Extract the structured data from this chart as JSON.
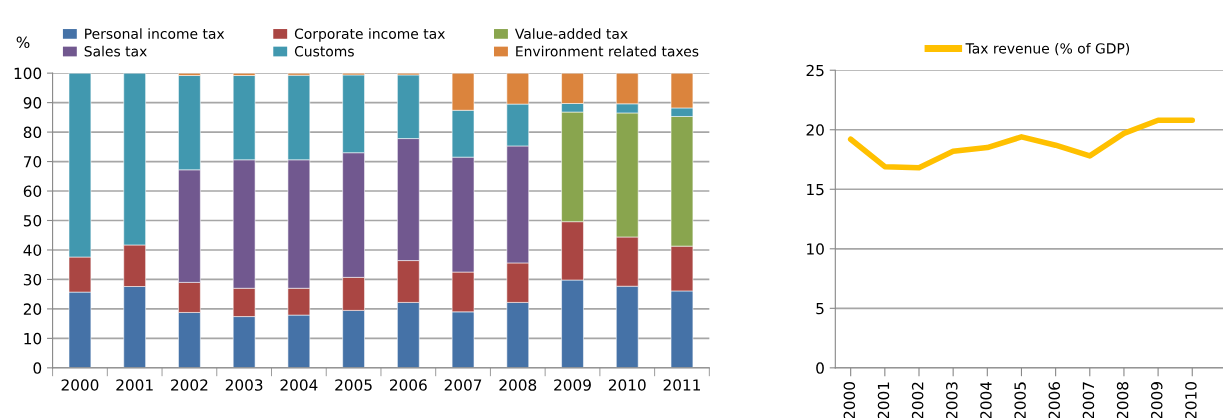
{
  "chart_data": [
    {
      "type": "bar",
      "stacked": true,
      "ylabel": "%",
      "categories": [
        "2000",
        "2001",
        "2002",
        "2003",
        "2004",
        "2005",
        "2006",
        "2007",
        "2008",
        "2009",
        "2010",
        "2011"
      ],
      "series": [
        {
          "name": "Personal income tax",
          "color": "#4572a7",
          "values": [
            25.7,
            27.6,
            18.8,
            17.4,
            17.9,
            19.5,
            22.2,
            19.0,
            22.2,
            29.8,
            27.7,
            26.1
          ]
        },
        {
          "name": "Corporate income tax",
          "color": "#aa4643",
          "values": [
            11.9,
            14.1,
            10.2,
            9.6,
            9.1,
            11.2,
            14.2,
            13.5,
            13.4,
            19.8,
            16.7,
            15.2
          ]
        },
        {
          "name": "Value-added tax",
          "color": "#89a54e",
          "values": [
            null,
            null,
            null,
            null,
            null,
            null,
            null,
            null,
            null,
            37.2,
            42.1,
            44.0
          ]
        },
        {
          "name": "Sales tax",
          "color": "#71588f",
          "values": [
            null,
            null,
            38.2,
            43.6,
            43.6,
            42.3,
            41.4,
            39.0,
            39.7,
            null,
            null,
            null
          ]
        },
        {
          "name": "Customs",
          "color": "#4198af",
          "values": [
            62.4,
            58.3,
            32.0,
            28.6,
            28.7,
            26.4,
            21.6,
            15.9,
            14.2,
            2.9,
            3.1,
            2.9
          ]
        },
        {
          "name": "Environment related taxes",
          "color": "#db843d",
          "values": [
            null,
            null,
            0.8,
            0.8,
            0.7,
            0.6,
            0.6,
            12.6,
            10.5,
            10.3,
            10.4,
            11.8
          ]
        }
      ],
      "ylim": [
        0,
        100
      ],
      "yticks": [
        0,
        10,
        20,
        30,
        40,
        50,
        60,
        70,
        80,
        90,
        100
      ],
      "grid": "y",
      "legend": "top"
    },
    {
      "type": "line",
      "categories": [
        "2000",
        "2001",
        "2002",
        "2003",
        "2004",
        "2005",
        "2006",
        "2007",
        "2008",
        "2009",
        "2010"
      ],
      "series": [
        {
          "name": "Tax revenue (% of GDP)",
          "color": "#ffc000",
          "values": [
            19.2,
            16.9,
            16.8,
            18.2,
            18.5,
            19.4,
            18.7,
            17.8,
            19.7,
            20.8,
            20.8
          ]
        }
      ],
      "ylim": [
        0,
        25
      ],
      "yticks": [
        0,
        5,
        10,
        15,
        20,
        25
      ],
      "grid": "y",
      "legend": "top",
      "marker": "none",
      "line_style": "solid"
    }
  ]
}
